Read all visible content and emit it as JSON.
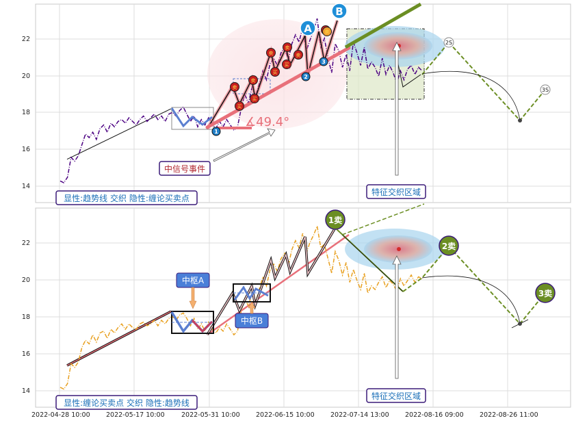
{
  "colors": {
    "top_series": "#4b0082",
    "bottom_series": "#e8a020",
    "trend_green": "#6b8e23",
    "trend_red": "#e8707a",
    "zone_blue": "#a8d4ee",
    "zone_red": "#f2a8b0",
    "label_border": "#3a1a78"
  },
  "x_ticks": [
    "2022-04-28 10:00",
    "2022-05-17 10:00",
    "2022-05-31 10:00",
    "2022-06-15 10:00",
    "2022-07-14 13:00",
    "2022-08-16 09:00",
    "2022-08-26 11:00"
  ],
  "top_panel": {
    "ylim": [
      13,
      24
    ],
    "yticks": [
      "14",
      "16",
      "18",
      "20",
      "22"
    ],
    "legend": "显性:趋势线 交织 隐性:缠论买卖点",
    "annotation_signal": "中信号事件",
    "annotation_zone": "特征交织区域",
    "angle_label": "∡49.4°",
    "badge_a": "A",
    "badge_b": "B",
    "badge_2s": "2S",
    "badge_3s": "3S",
    "small_badges": [
      "1",
      "2",
      "3"
    ],
    "event_marks": [
      "卖",
      "买",
      "卖",
      "买",
      "卖",
      "买",
      "卖",
      "买",
      "卖",
      "卖",
      "卖"
    ]
  },
  "bottom_panel": {
    "ylim": [
      13,
      24
    ],
    "yticks": [
      "14",
      "16",
      "18",
      "20",
      "22"
    ],
    "legend": "显性:缠论买卖点 交织 隐性:趋势线",
    "label_a": "中枢A",
    "label_b": "中枢B",
    "annotation_zone": "特征交织区域",
    "sell_1": "1卖",
    "sell_2": "2卖",
    "sell_3": "3卖"
  },
  "chart_data": [
    {
      "type": "line",
      "panel": "top",
      "ylim": [
        13,
        24
      ],
      "series": [
        {
          "values": [
            14.2,
            14.1,
            14.4,
            15.5,
            15.3,
            15.6,
            16.2,
            16.8,
            16.6,
            16.9,
            16.5,
            17.1,
            17.3,
            16.9,
            17.4,
            17.2,
            17.5,
            17.6,
            17.4,
            17.7,
            17.5,
            17.3,
            17.6,
            17.8,
            17.5,
            17.7,
            17.9,
            17.6,
            17.8,
            17.5,
            17.9,
            18.0,
            17.8,
            18.1,
            18.3,
            17.9,
            17.5,
            17.8,
            17.2,
            17.6,
            17.3,
            17.7,
            17.4,
            17.1,
            17.5,
            17.2,
            17.6,
            17.3,
            17.0,
            17.2,
            18.2,
            19.0,
            18.5,
            19.4,
            18.9,
            19.6,
            20.3,
            19.8,
            20.7,
            21.0,
            20.6,
            21.3,
            21.6,
            20.9,
            21.8,
            22.3,
            21.9,
            22.7,
            21.4,
            22.0,
            22.5,
            23.2,
            21.6,
            22.1,
            21.0,
            20.2,
            21.8,
            21.4,
            20.5,
            21.2,
            20.3,
            21.9,
            21.3,
            20.6,
            21.6,
            20.4,
            20.8,
            20.5,
            20.0,
            21.0,
            20.1,
            20.6,
            20.2,
            19.6,
            20.3,
            19.8,
            20.4,
            20.6,
            20.1,
            20.5,
            20.3
          ]
        }
      ],
      "trendline_start": 15.4,
      "trendline_end": 18.2
    },
    {
      "type": "line",
      "panel": "bottom",
      "ylim": [
        13,
        24
      ],
      "series": [
        {
          "values": [
            14.1,
            14.0,
            14.3,
            15.4,
            15.2,
            15.5,
            16.3,
            16.7,
            16.5,
            17.0,
            16.6,
            17.1,
            17.2,
            16.8,
            17.3,
            17.1,
            17.4,
            17.6,
            17.3,
            17.6,
            17.4,
            17.3,
            17.6,
            17.7,
            17.5,
            17.6,
            17.8,
            17.5,
            17.8,
            17.6,
            17.9,
            18.0,
            17.8,
            18.1,
            18.2,
            17.9,
            17.5,
            17.9,
            17.3,
            17.6,
            17.2,
            17.7,
            17.3,
            17.1,
            17.4,
            17.2,
            17.6,
            17.3,
            17.0,
            17.2,
            18.3,
            19.0,
            18.6,
            19.3,
            18.8,
            19.5,
            20.2,
            19.7,
            20.6,
            20.9,
            20.5,
            21.2,
            21.5,
            20.8,
            21.7,
            22.2,
            21.8,
            22.6,
            21.5,
            22.1,
            22.5,
            23.0,
            21.8,
            22.0,
            21.2,
            20.4,
            21.6,
            21.1,
            20.3,
            21.0,
            19.9,
            20.6,
            20.0,
            19.5,
            20.4,
            19.3,
            19.7,
            19.5,
            19.9,
            20.2,
            19.6,
            20.0,
            19.8,
            19.4,
            20.1,
            19.7,
            20.0,
            20.3,
            19.9,
            20.2,
            20.1
          ]
        }
      ]
    }
  ]
}
